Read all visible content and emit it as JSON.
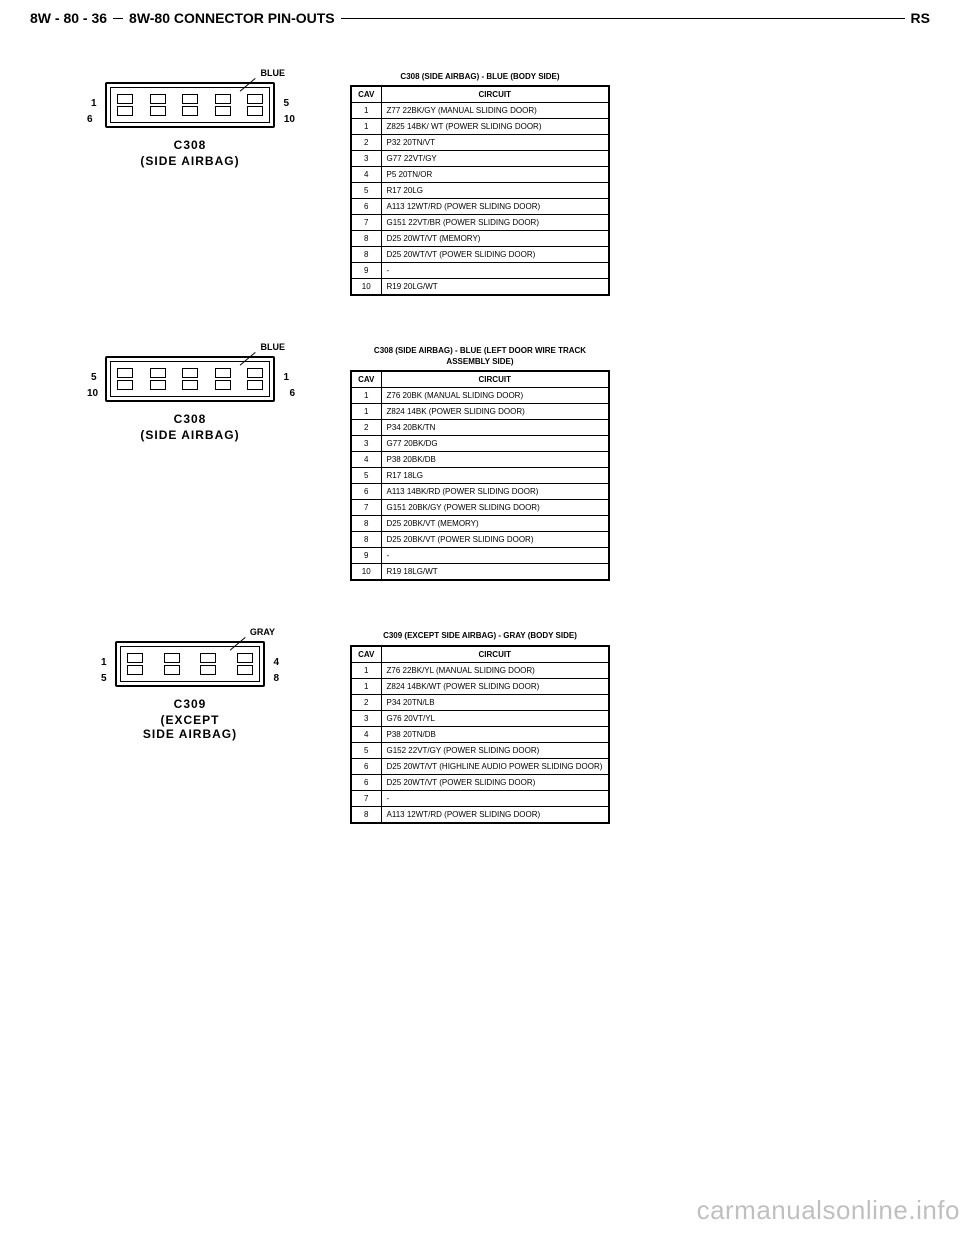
{
  "header": {
    "left": "8W - 80 - 36",
    "center": "8W-80 CONNECTOR PIN-OUTS",
    "right": "RS"
  },
  "watermark": "carmanualsonline.info",
  "sections": [
    {
      "diagram": {
        "color_label": "BLUE",
        "connector_id": "C308",
        "connector_desc": "(SIDE AIRBAG)",
        "pins_layout": "2x5",
        "num_top_left": "1",
        "num_top_right": "5",
        "num_bot_left": "6",
        "num_bot_right": "10"
      },
      "table": {
        "title": "C308 (SIDE AIRBAG) - BLUE (BODY SIDE)",
        "header_cav": "CAV",
        "header_circuit": "CIRCUIT",
        "rows": [
          {
            "cav": "1",
            "circuit": "Z77 22BK/GY (MANUAL SLIDING DOOR)"
          },
          {
            "cav": "1",
            "circuit": "Z825 14BK/ WT (POWER SLIDING DOOR)"
          },
          {
            "cav": "2",
            "circuit": "P32 20TN/VT"
          },
          {
            "cav": "3",
            "circuit": "G77 22VT/GY"
          },
          {
            "cav": "4",
            "circuit": "P5 20TN/OR"
          },
          {
            "cav": "5",
            "circuit": "R17 20LG"
          },
          {
            "cav": "6",
            "circuit": "A113 12WT/RD (POWER SLIDING DOOR)"
          },
          {
            "cav": "7",
            "circuit": "G151 22VT/BR (POWER SLIDING DOOR)"
          },
          {
            "cav": "8",
            "circuit": "D25 20WT/VT (MEMORY)"
          },
          {
            "cav": "8",
            "circuit": "D25 20WT/VT (POWER SLIDING DOOR)"
          },
          {
            "cav": "9",
            "circuit": "-"
          },
          {
            "cav": "10",
            "circuit": "R19 20LG/WT"
          }
        ]
      }
    },
    {
      "diagram": {
        "color_label": "BLUE",
        "connector_id": "C308",
        "connector_desc": "(SIDE AIRBAG)",
        "pins_layout": "2x5",
        "num_top_left": "5",
        "num_top_right": "1",
        "num_bot_left": "10",
        "num_bot_right": "6"
      },
      "table": {
        "title": "C308 (SIDE AIRBAG) - BLUE (LEFT DOOR WIRE TRACK ASSEMBLY SIDE)",
        "header_cav": "CAV",
        "header_circuit": "CIRCUIT",
        "rows": [
          {
            "cav": "1",
            "circuit": "Z76 20BK (MANUAL SLIDING DOOR)"
          },
          {
            "cav": "1",
            "circuit": "Z824 14BK (POWER SLIDING DOOR)"
          },
          {
            "cav": "2",
            "circuit": "P34 20BK/TN"
          },
          {
            "cav": "3",
            "circuit": "G77 20BK/DG"
          },
          {
            "cav": "4",
            "circuit": "P38 20BK/DB"
          },
          {
            "cav": "5",
            "circuit": "R17 18LG"
          },
          {
            "cav": "6",
            "circuit": "A113 14BK/RD (POWER SLIDING DOOR)"
          },
          {
            "cav": "7",
            "circuit": "G151 20BK/GY (POWER SLIDING DOOR)"
          },
          {
            "cav": "8",
            "circuit": "D25 20BK/VT (MEMORY)"
          },
          {
            "cav": "8",
            "circuit": "D25 20BK/VT (POWER SLIDING DOOR)"
          },
          {
            "cav": "9",
            "circuit": "-"
          },
          {
            "cav": "10",
            "circuit": "R19 18LG/WT"
          }
        ]
      }
    },
    {
      "diagram": {
        "color_label": "GRAY",
        "connector_id": "C309",
        "connector_desc": "(EXCEPT\nSIDE AIRBAG)",
        "pins_layout": "2x4",
        "num_top_left": "1",
        "num_top_right": "4",
        "num_bot_left": "5",
        "num_bot_right": "8"
      },
      "table": {
        "title": "C309 (EXCEPT SIDE AIRBAG) - GRAY (BODY SIDE)",
        "header_cav": "CAV",
        "header_circuit": "CIRCUIT",
        "rows": [
          {
            "cav": "1",
            "circuit": "Z76 22BK/YL (MANUAL SLIDING DOOR)"
          },
          {
            "cav": "1",
            "circuit": "Z824 14BK/WT (POWER SLIDING DOOR)"
          },
          {
            "cav": "2",
            "circuit": "P34 20TN/LB"
          },
          {
            "cav": "3",
            "circuit": "G76 20VT/YL"
          },
          {
            "cav": "4",
            "circuit": "P38 20TN/DB"
          },
          {
            "cav": "5",
            "circuit": "G152 22VT/GY (POWER SLIDING DOOR)"
          },
          {
            "cav": "6",
            "circuit": "D25 20WT/VT (HIGHLINE AUDIO POWER SLIDING DOOR)"
          },
          {
            "cav": "6",
            "circuit": "D25 20WT/VT (POWER SLIDING DOOR)"
          },
          {
            "cav": "7",
            "circuit": "-"
          },
          {
            "cav": "8",
            "circuit": "A113 12WT/RD (POWER SLIDING DOOR)"
          }
        ]
      }
    }
  ]
}
